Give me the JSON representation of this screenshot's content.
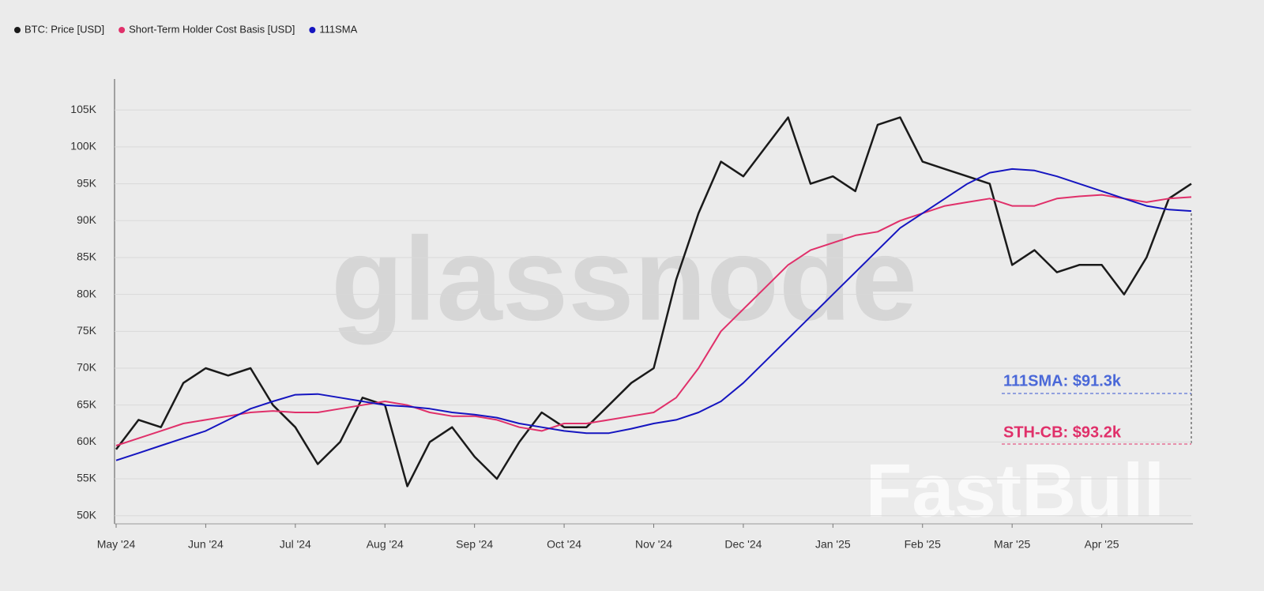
{
  "chart_data": {
    "type": "line",
    "categories": [
      "May '24",
      null,
      null,
      null,
      "Jun '24",
      null,
      null,
      null,
      "Jul '24",
      null,
      null,
      null,
      "Aug '24",
      null,
      null,
      null,
      "Sep '24",
      null,
      null,
      null,
      "Oct '24",
      null,
      null,
      null,
      "Nov '24",
      null,
      null,
      null,
      "Dec '24",
      null,
      null,
      null,
      "Jan '25",
      null,
      null,
      null,
      "Feb '25",
      null,
      null,
      null,
      "Mar '25",
      null,
      null,
      null,
      "Apr '25",
      null,
      null,
      null,
      null
    ],
    "series": [
      {
        "name": "BTC: Price [USD]",
        "color": "#1a1a1a",
        "values": [
          59,
          63,
          62,
          68,
          70,
          69,
          70,
          65,
          62,
          57,
          60,
          66,
          65,
          54,
          60,
          62,
          58,
          55,
          60,
          64,
          62,
          62,
          65,
          68,
          70,
          82,
          91,
          98,
          96,
          100,
          104,
          95,
          96,
          94,
          103,
          104,
          98,
          97,
          96,
          95,
          84,
          86,
          83,
          84,
          84,
          80,
          85,
          93,
          95
        ]
      },
      {
        "name": "Short-Term Holder Cost Basis [USD]",
        "color": "#e0306a",
        "values": [
          59.5,
          60.5,
          61.5,
          62.5,
          63,
          63.5,
          64,
          64.2,
          64,
          64,
          64.5,
          65,
          65.5,
          65,
          64,
          63.5,
          63.5,
          63,
          62,
          61.5,
          62.5,
          62.5,
          63,
          63.5,
          64,
          66,
          70,
          75,
          78,
          81,
          84,
          86,
          87,
          88,
          88.5,
          90,
          91,
          92,
          92.5,
          93,
          92,
          92,
          93,
          93.3,
          93.5,
          93,
          92.5,
          93,
          93.2
        ]
      },
      {
        "name": "111SMA",
        "color": "#1515c0",
        "values": [
          57.5,
          58.5,
          59.5,
          60.5,
          61.5,
          63,
          64.5,
          65.5,
          66.4,
          66.5,
          66,
          65.5,
          65,
          64.8,
          64.5,
          64,
          63.7,
          63.3,
          62.5,
          62,
          61.5,
          61.2,
          61.2,
          61.8,
          62.5,
          63,
          64,
          65.5,
          68,
          71,
          74,
          77,
          80,
          83,
          86,
          89,
          91,
          93,
          95,
          96.5,
          97,
          96.8,
          96,
          95,
          94,
          93,
          92,
          91.5,
          91.3
        ]
      }
    ],
    "ylim": [
      48.9,
      109.2
    ],
    "yticks": [
      {
        "value": 50,
        "label": "50K"
      },
      {
        "value": 55,
        "label": "55K"
      },
      {
        "value": 60,
        "label": "60K"
      },
      {
        "value": 65,
        "label": "65K"
      },
      {
        "value": 70,
        "label": "70K"
      },
      {
        "value": 75,
        "label": "75K"
      },
      {
        "value": 80,
        "label": "80K"
      },
      {
        "value": 85,
        "label": "85K"
      },
      {
        "value": 90,
        "label": "90K"
      },
      {
        "value": 95,
        "label": "95K"
      },
      {
        "value": 100,
        "label": "100K"
      },
      {
        "value": 105,
        "label": "105K"
      }
    ],
    "grid": true,
    "annotations": [
      "111SMA: $91.3k",
      "STH-CB: $93.2k"
    ],
    "watermarks": [
      "glassnode",
      "FastBull"
    ]
  }
}
